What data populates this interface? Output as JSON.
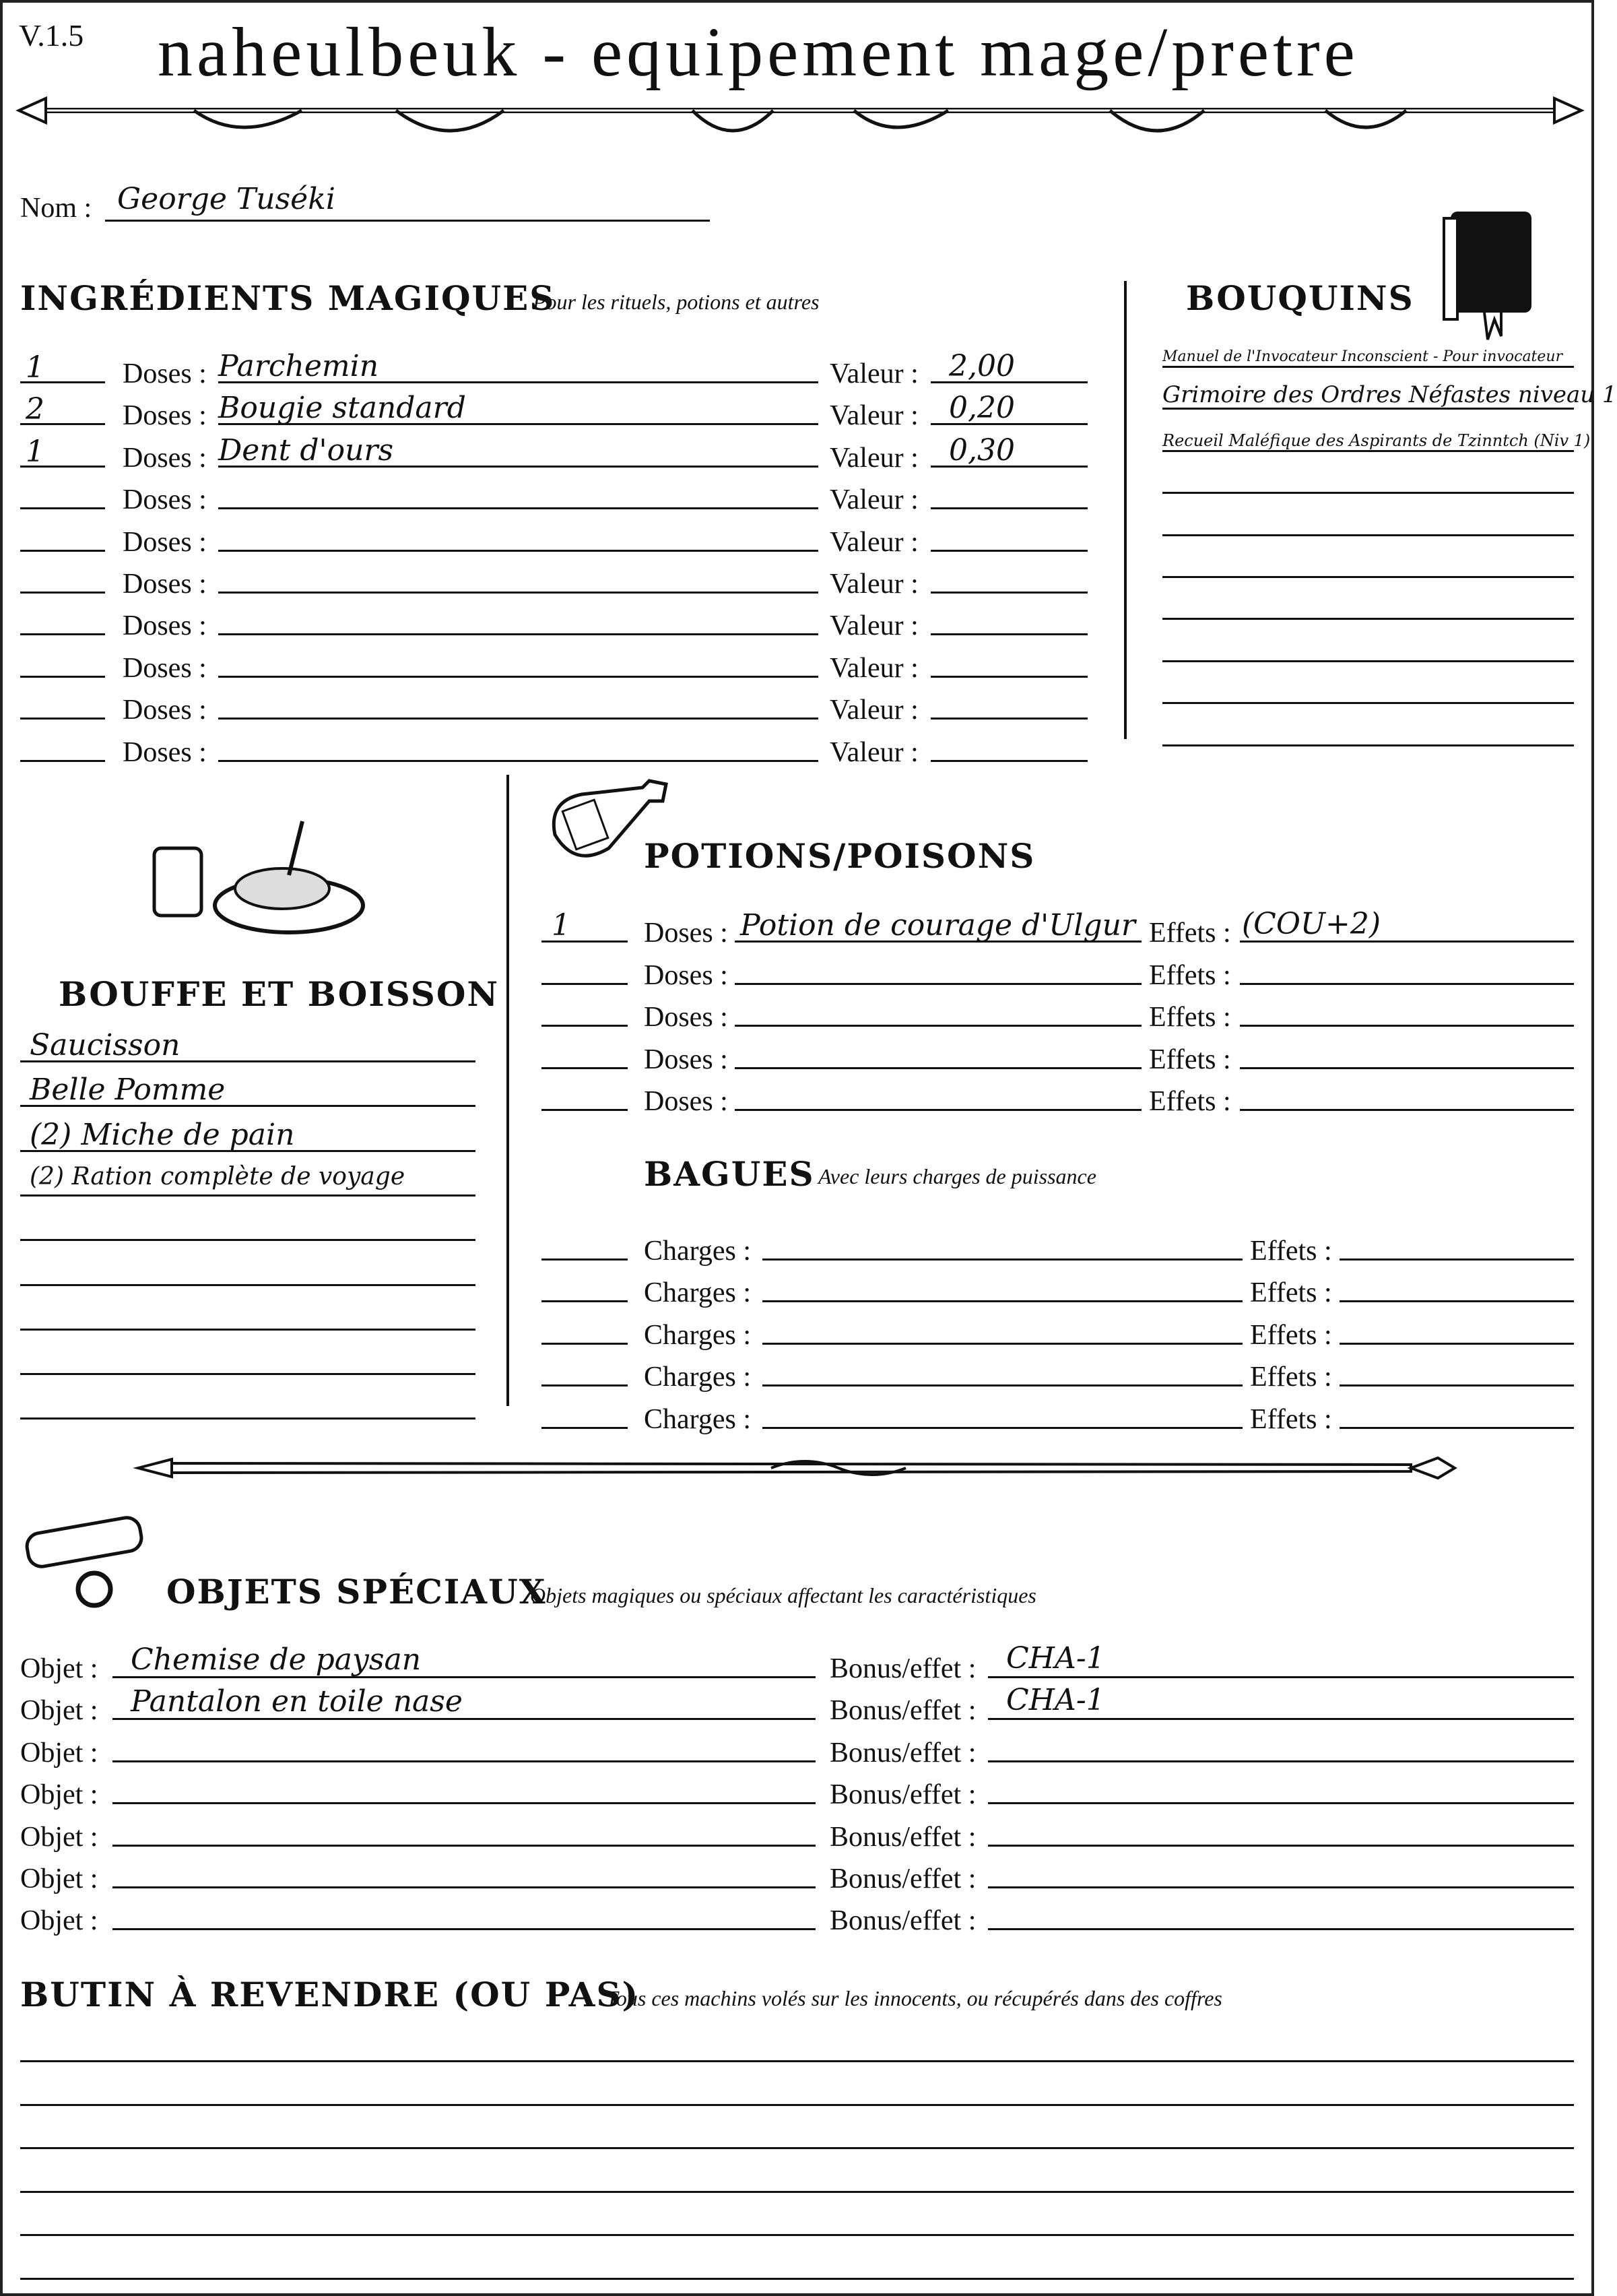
{
  "header": {
    "version": "V.1.5",
    "title": "naheulbeuk - equipement mage/pretre"
  },
  "character": {
    "name_label": "Nom :",
    "name": "George Tuséki"
  },
  "ingredients": {
    "heading": "INGRÉDIENTS MAGIQUES",
    "subtitle": "Pour les rituels, potions et autres",
    "doses_label": "Doses :",
    "value_label": "Valeur :",
    "rows": [
      {
        "qty": "1",
        "name": "Parchemin",
        "value": "2,00"
      },
      {
        "qty": "2",
        "name": "Bougie standard",
        "value": "0,20"
      },
      {
        "qty": "1",
        "name": "Dent d'ours",
        "value": "0,30"
      },
      {
        "qty": "",
        "name": "",
        "value": ""
      },
      {
        "qty": "",
        "name": "",
        "value": ""
      },
      {
        "qty": "",
        "name": "",
        "value": ""
      },
      {
        "qty": "",
        "name": "",
        "value": ""
      },
      {
        "qty": "",
        "name": "",
        "value": ""
      },
      {
        "qty": "",
        "name": "",
        "value": ""
      },
      {
        "qty": "",
        "name": "",
        "value": ""
      }
    ]
  },
  "books": {
    "heading": "BOUQUINS",
    "icon": "book-icon",
    "rows": [
      "Manuel de l'Invocateur Inconscient - Pour invocateur",
      "Grimoire des Ordres Néfastes niveau 1",
      "Recueil Maléfique des Aspirants de Tzinntch (Niv 1)",
      "",
      "",
      "",
      "",
      "",
      "",
      ""
    ]
  },
  "food": {
    "heading": "BOUFFE ET BOISSON",
    "icon": "food-plate-icon",
    "rows": [
      "Saucisson",
      "Belle Pomme",
      "(2) Miche de pain",
      "(2) Ration complète de voyage",
      "",
      "",
      "",
      "",
      ""
    ]
  },
  "potions": {
    "heading": "POTIONS/POISONS",
    "icon": "potion-bottle-icon",
    "doses_label": "Doses :",
    "effects_label": "Effets :",
    "rows": [
      {
        "qty": "1",
        "name": "Potion de courage d'Ulgur",
        "effect": "(COU+2)"
      },
      {
        "qty": "",
        "name": "",
        "effect": ""
      },
      {
        "qty": "",
        "name": "",
        "effect": ""
      },
      {
        "qty": "",
        "name": "",
        "effect": ""
      },
      {
        "qty": "",
        "name": "",
        "effect": ""
      }
    ]
  },
  "rings": {
    "heading": "BAGUES",
    "subtitle": "Avec leurs charges de puissance",
    "charges_label": "Charges :",
    "effects_label": "Effets :",
    "rows": [
      {
        "qty": "",
        "charges": "",
        "effect": ""
      },
      {
        "qty": "",
        "charges": "",
        "effect": ""
      },
      {
        "qty": "",
        "charges": "",
        "effect": ""
      },
      {
        "qty": "",
        "charges": "",
        "effect": ""
      },
      {
        "qty": "",
        "charges": "",
        "effect": ""
      }
    ]
  },
  "special": {
    "heading": "OBJETS SPÉCIAUX",
    "subtitle": "Objets magiques ou spéciaux affectant les caractéristiques",
    "icon": "scroll-and-ring-icon",
    "object_label": "Objet :",
    "bonus_label": "Bonus/effet :",
    "rows": [
      {
        "object": "Chemise de paysan",
        "bonus": "CHA-1"
      },
      {
        "object": "Pantalon en toile nase",
        "bonus": "CHA-1"
      },
      {
        "object": "",
        "bonus": ""
      },
      {
        "object": "",
        "bonus": ""
      },
      {
        "object": "",
        "bonus": ""
      },
      {
        "object": "",
        "bonus": ""
      },
      {
        "object": "",
        "bonus": ""
      }
    ]
  },
  "loot": {
    "heading": "BUTIN À REVENDRE (OU PAS)",
    "subtitle": "Tous ces machins volés sur les innocents, ou récupérés dans des coffres",
    "rows": [
      "",
      "",
      "",
      "",
      "",
      ""
    ]
  }
}
